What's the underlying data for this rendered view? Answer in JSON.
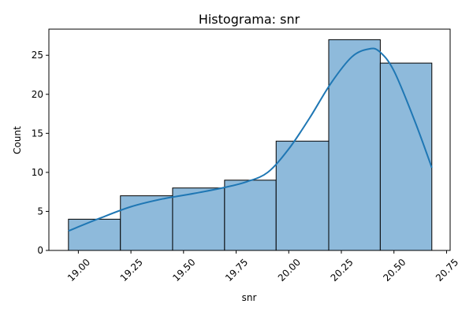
{
  "chart_data": {
    "type": "bar",
    "title": "Histograma: snr",
    "xlabel": "snr",
    "ylabel": "Count",
    "xlim": [
      18.86,
      20.767
    ],
    "ylim": [
      0,
      28.35
    ],
    "bins": [
      {
        "x0": 18.953,
        "x1": 19.2,
        "count": 4
      },
      {
        "x0": 19.2,
        "x1": 19.448,
        "count": 7
      },
      {
        "x0": 19.448,
        "x1": 19.695,
        "count": 8
      },
      {
        "x0": 19.695,
        "x1": 19.94,
        "count": 9
      },
      {
        "x0": 19.94,
        "x1": 20.19,
        "count": 14
      },
      {
        "x0": 20.19,
        "x1": 20.435,
        "count": 27
      },
      {
        "x0": 20.435,
        "x1": 20.68,
        "count": 24
      }
    ],
    "kde": [
      [
        18.953,
        2.5
      ],
      [
        19.1,
        4.1
      ],
      [
        19.25,
        5.6
      ],
      [
        19.4,
        6.6
      ],
      [
        19.55,
        7.3
      ],
      [
        19.7,
        8.1
      ],
      [
        19.8,
        8.8
      ],
      [
        19.9,
        10.0
      ],
      [
        20.0,
        13.0
      ],
      [
        20.1,
        17.0
      ],
      [
        20.2,
        21.4
      ],
      [
        20.3,
        24.8
      ],
      [
        20.38,
        25.8
      ],
      [
        20.43,
        25.5
      ],
      [
        20.5,
        23.0
      ],
      [
        20.6,
        16.5
      ],
      [
        20.68,
        10.6
      ]
    ],
    "xticks": [
      "19.00",
      "19.25",
      "19.50",
      "19.75",
      "20.00",
      "20.25",
      "20.50",
      "20.75"
    ],
    "xtick_values": [
      19.0,
      19.25,
      19.5,
      19.75,
      20.0,
      20.25,
      20.5,
      20.75
    ],
    "yticks": [
      "0",
      "5",
      "10",
      "15",
      "20",
      "25"
    ],
    "ytick_values": [
      0,
      5,
      10,
      15,
      20,
      25
    ],
    "grid": false,
    "colors": {
      "bar_fill": "#8ebadb",
      "bar_edge": "#000000",
      "kde_line": "#1f77b4"
    }
  }
}
